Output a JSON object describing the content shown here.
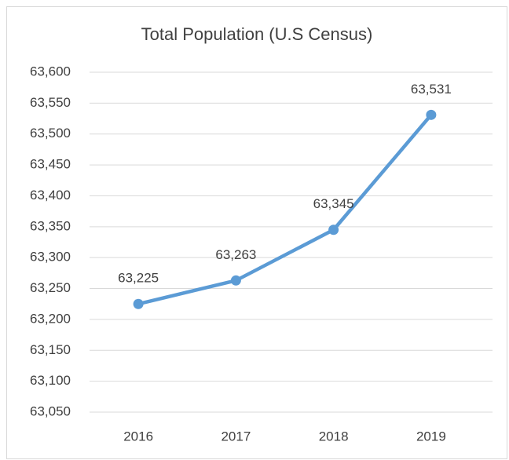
{
  "chart_data": {
    "type": "line",
    "title": "Total Population (U.S Census)",
    "categories": [
      "2016",
      "2017",
      "2018",
      "2019"
    ],
    "series": [
      {
        "name": "Total Population",
        "color": "#5b9bd5",
        "values": [
          63225,
          63263,
          63345,
          63531
        ],
        "value_labels": [
          "63,225",
          "63,263",
          "63,345",
          "63,531"
        ]
      }
    ],
    "ylim": [
      63050,
      63600
    ],
    "yticks": [
      {
        "value": 63050,
        "label": "63,050"
      },
      {
        "value": 63100,
        "label": "63,100"
      },
      {
        "value": 63150,
        "label": "63,150"
      },
      {
        "value": 63200,
        "label": "63,200"
      },
      {
        "value": 63250,
        "label": "63,250"
      },
      {
        "value": 63300,
        "label": "63,300"
      },
      {
        "value": 63350,
        "label": "63,350"
      },
      {
        "value": 63400,
        "label": "63,400"
      },
      {
        "value": 63450,
        "label": "63,450"
      },
      {
        "value": 63500,
        "label": "63,500"
      },
      {
        "value": 63550,
        "label": "63,550"
      },
      {
        "value": 63600,
        "label": "63,600"
      }
    ],
    "grid": true
  }
}
